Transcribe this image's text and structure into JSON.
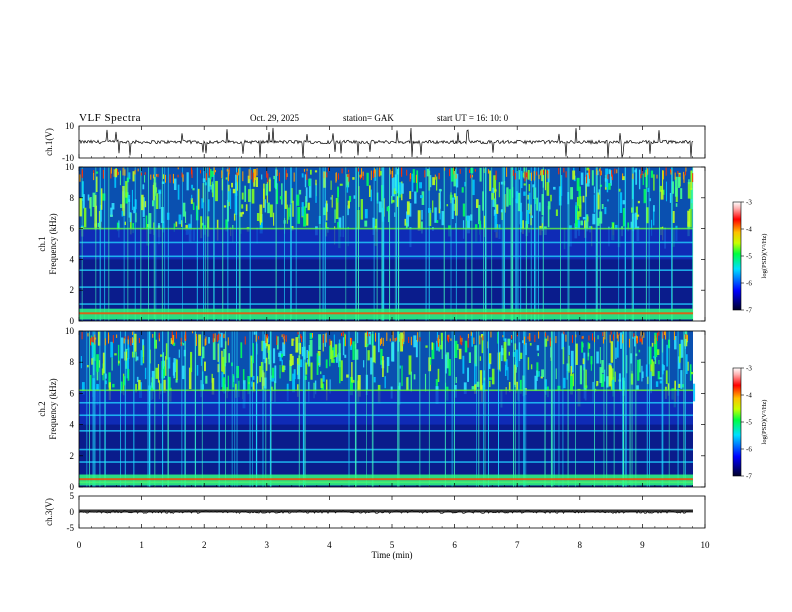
{
  "header": {
    "title": "VLF  Spectra",
    "date": "Oct. 29, 2025",
    "station": "station= GAK",
    "start": "start  UT  =    16: 10: 0"
  },
  "chart_data": [
    {
      "type": "line",
      "ylabel": "ch.1(V)",
      "yticks": [
        "10",
        "-10"
      ],
      "ylim": [
        -10,
        10
      ],
      "baseline": 0
    },
    {
      "type": "heatmap",
      "ylabel_lines": [
        "ch.1",
        "Frequency  (kHz)"
      ],
      "ylim": [
        0,
        10
      ],
      "yticks": [
        "0",
        "2",
        "4",
        "6",
        "8",
        "10"
      ],
      "colorbar": {
        "label": "log(PSD)(V²/Hz)",
        "ticks": [
          "-3",
          "-4",
          "-5",
          "-6",
          "-7"
        ],
        "range": [
          -7,
          -3
        ]
      },
      "line_levels_khz": [
        6.0,
        5.1,
        4.2,
        3.3,
        2.2,
        1.1,
        0.5
      ]
    },
    {
      "type": "heatmap",
      "ylabel_lines": [
        "ch.2",
        "Frequency  (kHz)"
      ],
      "ylim": [
        0,
        10
      ],
      "yticks": [
        "0",
        "2",
        "4",
        "6",
        "8",
        "10"
      ],
      "colorbar": {
        "label": "log(PSD)(V²/Hz)",
        "ticks": [
          "-3",
          "-4",
          "-5",
          "-6",
          "-7"
        ],
        "range": [
          -7,
          -3
        ]
      },
      "line_levels_khz": [
        6.2,
        5.4,
        4.6,
        3.6,
        2.4,
        1.6,
        0.3
      ]
    },
    {
      "type": "line",
      "ylabel": "ch.3(V)",
      "yticks": [
        "5",
        "0",
        "-5"
      ],
      "ylim": [
        -5,
        5
      ],
      "baseline": 0
    }
  ],
  "xaxis": {
    "label": "Time  (min)",
    "range": [
      0,
      10
    ],
    "ticks": [
      "0",
      "1",
      "2",
      "3",
      "4",
      "5",
      "6",
      "7",
      "8",
      "9",
      "10"
    ]
  }
}
